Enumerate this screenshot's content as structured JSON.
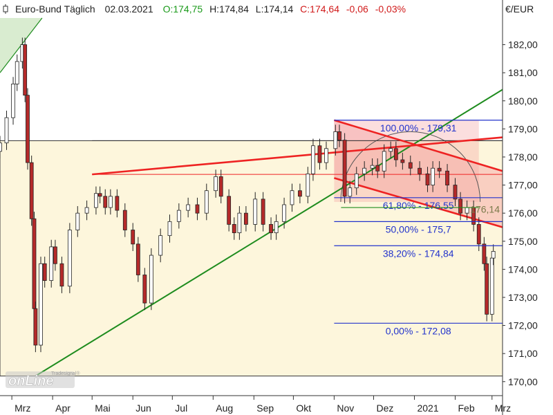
{
  "header": {
    "icon": "candlestick-icon",
    "instrument": "Euro-Bund Täglich",
    "date": "02.03.2021",
    "open": "O:174,75",
    "high": "H:174,84",
    "low": "L:174,14",
    "close": "C:174,64",
    "change": "-0,06",
    "change_pct": "-0,03%",
    "colors": {
      "open": "#1a9a1a",
      "close": "#d11a1a",
      "text": "#222222"
    }
  },
  "unit_label": "€/EUR",
  "logo": {
    "text": "onLine",
    "subtext": "Tradesignal®"
  },
  "chart_data": {
    "type": "candlestick",
    "title": "Euro-Bund Täglich",
    "ylabel": "€/EUR",
    "ylim": [
      169.6,
      182.95
    ],
    "y_ticks": [
      170,
      171,
      172,
      173,
      174,
      175,
      176,
      177,
      178,
      179,
      180,
      181,
      182
    ],
    "y_tick_labels": [
      "170,00",
      "171,00",
      "172,00",
      "173,00",
      "174,00",
      "175,00",
      "176,00",
      "177,00",
      "178,00",
      "179,00",
      "180,00",
      "181,00",
      "182,00"
    ],
    "x_range": [
      "2020-02-21",
      "2021-03-09"
    ],
    "x_ticks": [
      {
        "date": "2020-03-01",
        "label": "Mrz"
      },
      {
        "date": "2020-04-01",
        "label": "Apr"
      },
      {
        "date": "2020-05-01",
        "label": "Mai"
      },
      {
        "date": "2020-06-01",
        "label": "Jun"
      },
      {
        "date": "2020-07-01",
        "label": "Jul"
      },
      {
        "date": "2020-08-01",
        "label": "Aug"
      },
      {
        "date": "2020-09-01",
        "label": "Sep"
      },
      {
        "date": "2020-10-01",
        "label": "Okt"
      },
      {
        "date": "2020-11-01",
        "label": "Nov"
      },
      {
        "date": "2020-12-01",
        "label": "Dez"
      },
      {
        "date": "2021-01-01",
        "label": "2021"
      },
      {
        "date": "2021-02-01",
        "label": "Feb"
      },
      {
        "date": "2021-03-01",
        "label": "Mrz"
      }
    ],
    "series": [
      {
        "values": [
          [
            "2020-02-21",
            178.5
          ],
          [
            "2020-02-26",
            179.4
          ],
          [
            "2020-03-02",
            180.6
          ],
          [
            "2020-03-05",
            181.4
          ],
          [
            "2020-03-09",
            182.0
          ],
          [
            "2020-03-11",
            180.2
          ],
          [
            "2020-03-13",
            177.8
          ],
          [
            "2020-03-16",
            175.8
          ],
          [
            "2020-03-18",
            172.6
          ],
          [
            "2020-03-19",
            171.3
          ],
          [
            "2020-03-23",
            174.2
          ],
          [
            "2020-03-26",
            173.6
          ],
          [
            "2020-03-31",
            174.8
          ],
          [
            "2020-04-03",
            174.2
          ],
          [
            "2020-04-08",
            173.4
          ],
          [
            "2020-04-14",
            175.4
          ],
          [
            "2020-04-20",
            176.0
          ],
          [
            "2020-04-27",
            176.2
          ],
          [
            "2020-05-04",
            176.7
          ],
          [
            "2020-05-07",
            176.6
          ],
          [
            "2020-05-11",
            176.2
          ],
          [
            "2020-05-15",
            176.6
          ],
          [
            "2020-05-20",
            176.1
          ],
          [
            "2020-05-26",
            175.4
          ],
          [
            "2020-06-01",
            174.9
          ],
          [
            "2020-06-05",
            173.8
          ],
          [
            "2020-06-10",
            172.8
          ],
          [
            "2020-06-15",
            174.5
          ],
          [
            "2020-06-22",
            175.2
          ],
          [
            "2020-06-29",
            175.7
          ],
          [
            "2020-07-06",
            176.1
          ],
          [
            "2020-07-13",
            176.3
          ],
          [
            "2020-07-20",
            176.0
          ],
          [
            "2020-07-27",
            176.8
          ],
          [
            "2020-08-03",
            177.3
          ],
          [
            "2020-08-07",
            176.6
          ],
          [
            "2020-08-13",
            175.6
          ],
          [
            "2020-08-17",
            175.3
          ],
          [
            "2020-08-21",
            176.0
          ],
          [
            "2020-08-26",
            175.6
          ],
          [
            "2020-09-02",
            176.5
          ],
          [
            "2020-09-08",
            175.6
          ],
          [
            "2020-09-14",
            175.3
          ],
          [
            "2020-09-18",
            175.7
          ],
          [
            "2020-09-24",
            176.3
          ],
          [
            "2020-09-30",
            176.8
          ],
          [
            "2020-10-06",
            176.6
          ],
          [
            "2020-10-12",
            177.4
          ],
          [
            "2020-10-16",
            178.4
          ],
          [
            "2020-10-21",
            177.8
          ],
          [
            "2020-10-26",
            178.3
          ],
          [
            "2020-11-02",
            178.9
          ],
          [
            "2020-11-05",
            178.6
          ],
          [
            "2020-11-09",
            176.6
          ],
          [
            "2020-11-13",
            176.9
          ],
          [
            "2020-11-18",
            177.4
          ],
          [
            "2020-11-24",
            177.6
          ],
          [
            "2020-11-30",
            177.7
          ],
          [
            "2020-12-04",
            177.5
          ],
          [
            "2020-12-09",
            178.2
          ],
          [
            "2020-12-14",
            178.3
          ],
          [
            "2020-12-18",
            177.9
          ],
          [
            "2020-12-23",
            177.8
          ],
          [
            "2020-12-29",
            177.6
          ],
          [
            "2021-01-05",
            177.4
          ],
          [
            "2021-01-11",
            177.0
          ],
          [
            "2021-01-15",
            177.6
          ],
          [
            "2021-01-20",
            177.5
          ],
          [
            "2021-01-26",
            177.0
          ],
          [
            "2021-02-01",
            176.5
          ],
          [
            "2021-02-05",
            176.0
          ],
          [
            "2021-02-10",
            176.2
          ],
          [
            "2021-02-15",
            175.6
          ],
          [
            "2021-02-19",
            174.9
          ],
          [
            "2021-02-23",
            174.2
          ],
          [
            "2021-02-25",
            172.4
          ],
          [
            "2021-03-01",
            174.4
          ],
          [
            "2021-03-02",
            174.64
          ]
        ]
      }
    ],
    "fibonacci_levels": [
      {
        "label": "100,00% - 179,31",
        "price": 179.31
      },
      {
        "label": "61,80% - 176,55",
        "price": 176.55
      },
      {
        "label": "50,00% - 175,7",
        "price": 175.7
      },
      {
        "label": "38,20% - 174,84",
        "price": 174.84
      },
      {
        "label": "0,00% - 172,08",
        "price": 172.08
      }
    ],
    "fibonacci_span": [
      "2020-11-01",
      "2021-03-02"
    ],
    "price_marker": {
      "label": "176,14",
      "price": 176.14
    },
    "horizontal_lines": [
      177.38,
      178.58
    ],
    "trendlines": [
      {
        "color": "#1e8c1e",
        "from": [
          "2020-03-19",
          170.2
        ],
        "to": [
          "2021-03-09",
          180.4
        ]
      },
      {
        "color": "#ee2222",
        "from": [
          "2020-05-01",
          177.38
        ],
        "to": [
          "2021-03-09",
          178.7
        ]
      },
      {
        "color": "#ee2222",
        "from": [
          "2020-11-01",
          179.31
        ],
        "to": [
          "2021-03-09",
          177.5
        ]
      },
      {
        "color": "#ee2222",
        "from": [
          "2020-11-01",
          177.25
        ],
        "to": [
          "2021-03-09",
          175.5
        ]
      },
      {
        "color": "#ee2222",
        "from": [
          "2020-05-01",
          177.38
        ],
        "to": [
          "2021-03-09",
          177.38
        ]
      }
    ],
    "range_box": {
      "from": [
        "2020-02-21",
        170.2
      ],
      "to": [
        "2021-03-09",
        178.58
      ],
      "color": "#fdf6dc"
    },
    "colors": {
      "candle_up": "#ffffff",
      "candle_down": "#b52a2a",
      "wick": "#222222",
      "fib": "#2233cc",
      "channel_fill": "#f4a0a0",
      "support_zone": "#d9ecd0"
    }
  }
}
